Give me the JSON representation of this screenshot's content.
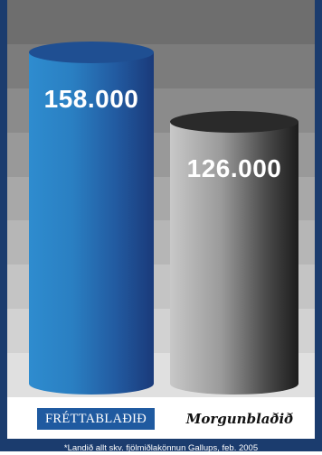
{
  "chart_data": {
    "type": "bar",
    "title": "",
    "xlabel": "",
    "ylabel": "",
    "categories": [
      "Fréttablaðið",
      "Morgunblaðið"
    ],
    "values": [
      158000,
      126000
    ],
    "value_labels": [
      "158.000",
      "126.000"
    ],
    "ylim": [
      0,
      175000
    ],
    "grid": false,
    "legend": "none",
    "bar_style": "3d-cylinder"
  },
  "logos": {
    "frettabladid": "FRÉTTABLAÐIÐ",
    "morgunbladid": "Morgunblaðið"
  },
  "footnote": "*Landið allt skv. fjölmiðlakönnun Gallups, feb. 2005",
  "colors": {
    "frame": "#1b3c6e",
    "bands": [
      "#6e6e6e",
      "#7c7c7c",
      "#8b8b8b",
      "#999999",
      "#a8a8a8",
      "#b6b6b6",
      "#c4c4c4",
      "#d2d2d2",
      "#e0e0e0"
    ],
    "bar_blue_light": "#2e8ccf",
    "bar_blue_dark": "#1a3a7a",
    "bar_gray_light": "#c8c8c8",
    "bar_gray_dark": "#1c1c1c",
    "logo_blue": "#1f5aa0"
  }
}
